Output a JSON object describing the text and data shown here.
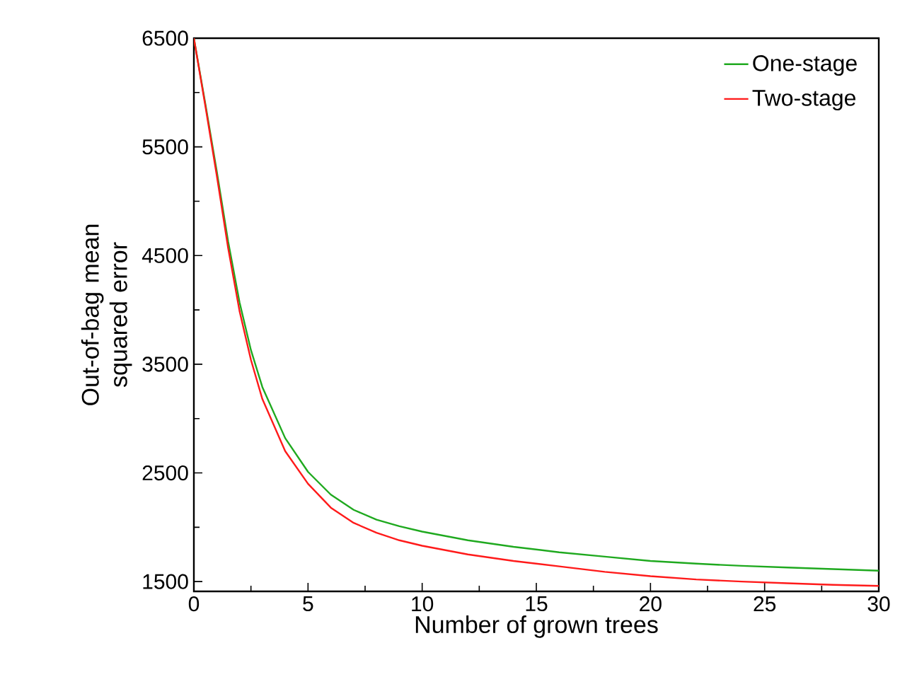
{
  "chart_data": {
    "type": "line",
    "xlabel": "Number of grown trees",
    "ylabel": "Out-of-bag mean squared error",
    "xlim": [
      0,
      30
    ],
    "ylim": [
      1410,
      6500
    ],
    "xticks": [
      0,
      5,
      10,
      15,
      20,
      25,
      30
    ],
    "yticks": [
      1500,
      2500,
      3500,
      4500,
      5500,
      6500
    ],
    "legend": "top right",
    "grid": false,
    "marker": "none",
    "line_style": "solid",
    "x": [
      0,
      0.5,
      1,
      1.5,
      2,
      2.5,
      3,
      4,
      5,
      6,
      7,
      8,
      9,
      10,
      12,
      14,
      16,
      18,
      20,
      22,
      24,
      26,
      28,
      30
    ],
    "series": [
      {
        "name": "One-stage",
        "color": "#1fa91f",
        "values": [
          6500,
          5900,
          5280,
          4630,
          4070,
          3630,
          3290,
          2820,
          2510,
          2300,
          2160,
          2070,
          2010,
          1960,
          1880,
          1820,
          1770,
          1730,
          1690,
          1665,
          1645,
          1630,
          1615,
          1600
        ]
      },
      {
        "name": "Two-stage",
        "color": "#ff1a1a",
        "values": [
          6500,
          5880,
          5240,
          4570,
          3990,
          3540,
          3180,
          2700,
          2400,
          2180,
          2040,
          1950,
          1880,
          1830,
          1750,
          1690,
          1640,
          1590,
          1550,
          1520,
          1500,
          1485,
          1470,
          1460
        ]
      }
    ]
  }
}
